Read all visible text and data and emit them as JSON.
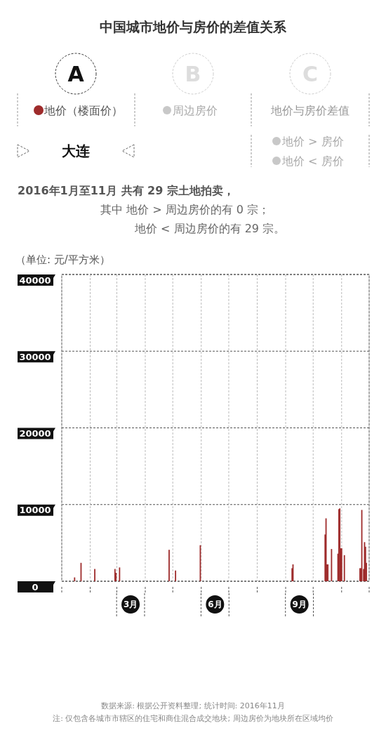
{
  "chart_data": {
    "type": "bar",
    "title": "中国城市地价与房价的差值关系",
    "subtitle": "大连",
    "ylabel": "（单位: 元/平方米）",
    "legend": "top",
    "grid": true,
    "x": [
      "2016-01-15",
      "2016-01-22",
      "2016-02-06",
      "2016-02-28",
      "2016-02-29",
      "2016-03-04",
      "2016-04-27",
      "2016-05-04",
      "2016-05-31",
      "2016-09-08",
      "2016-09-09",
      "2016-10-14",
      "2016-10-15",
      "2016-10-16",
      "2016-10-17",
      "2016-10-21",
      "2016-10-28",
      "2016-10-29",
      "2016-10-30",
      "2016-10-31",
      "2016-11-01",
      "2016-11-04",
      "2016-11-21",
      "2016-11-22",
      "2016-11-23",
      "2016-11-25",
      "2016-11-26",
      "2016-11-27",
      "2016-11-28"
    ],
    "series": [
      {
        "name": "地价（楼面价）",
        "color": "#9e2b2b",
        "values": [
          500,
          2400,
          1600,
          1600,
          1100,
          1800,
          4100,
          1400,
          4700,
          1700,
          2200,
          6100,
          8200,
          2200,
          2200,
          4200,
          3600,
          9400,
          9500,
          4300,
          4300,
          3400,
          1700,
          1700,
          9300,
          1600,
          5100,
          4500,
          2400
        ]
      }
    ],
    "xlim": [
      "2016-01-01",
      "2016-12-01"
    ],
    "xticks": [
      {
        "value": "2016-01-01",
        "label": null
      },
      {
        "value": "2016-02-01",
        "label": null
      },
      {
        "value": "2016-03-01",
        "label": null
      },
      {
        "value": "2016-04-01",
        "label": null
      },
      {
        "value": "2016-05-01",
        "label": null
      },
      {
        "value": "2016-06-01",
        "label": null
      },
      {
        "value": "2016-07-01",
        "label": null
      },
      {
        "value": "2016-08-01",
        "label": null
      },
      {
        "value": "2016-09-01",
        "label": null
      },
      {
        "value": "2016-10-01",
        "label": null
      },
      {
        "value": "2016-11-01",
        "label": null
      },
      {
        "value": "2016-12-01",
        "label": null
      },
      {
        "value": "2016-03-16",
        "label": "3月"
      },
      {
        "value": "2016-06-16",
        "label": "6月"
      },
      {
        "value": "2016-09-16",
        "label": "9月"
      }
    ],
    "ylim": [
      0,
      40000
    ],
    "yticks": [
      0,
      10000,
      20000,
      30000,
      40000
    ],
    "annotations": [
      "A",
      "B",
      "C",
      "周边房价",
      "地价与房价差值",
      "地价 > 房价",
      "地价 < 房价",
      "2016年1月至11月  共有  29  宗土地拍卖，",
      "其中  地价 > 周边房价的有  0  宗；",
      "地价 < 周边房价的有  29  宗。",
      "数据来源: 根据公开资料整理; 统计时间: 2016年11月",
      "注: 仅包含各城市市辖区的住宅和商住混合成交地块; 周边房价为地块所在区域均价"
    ]
  }
}
